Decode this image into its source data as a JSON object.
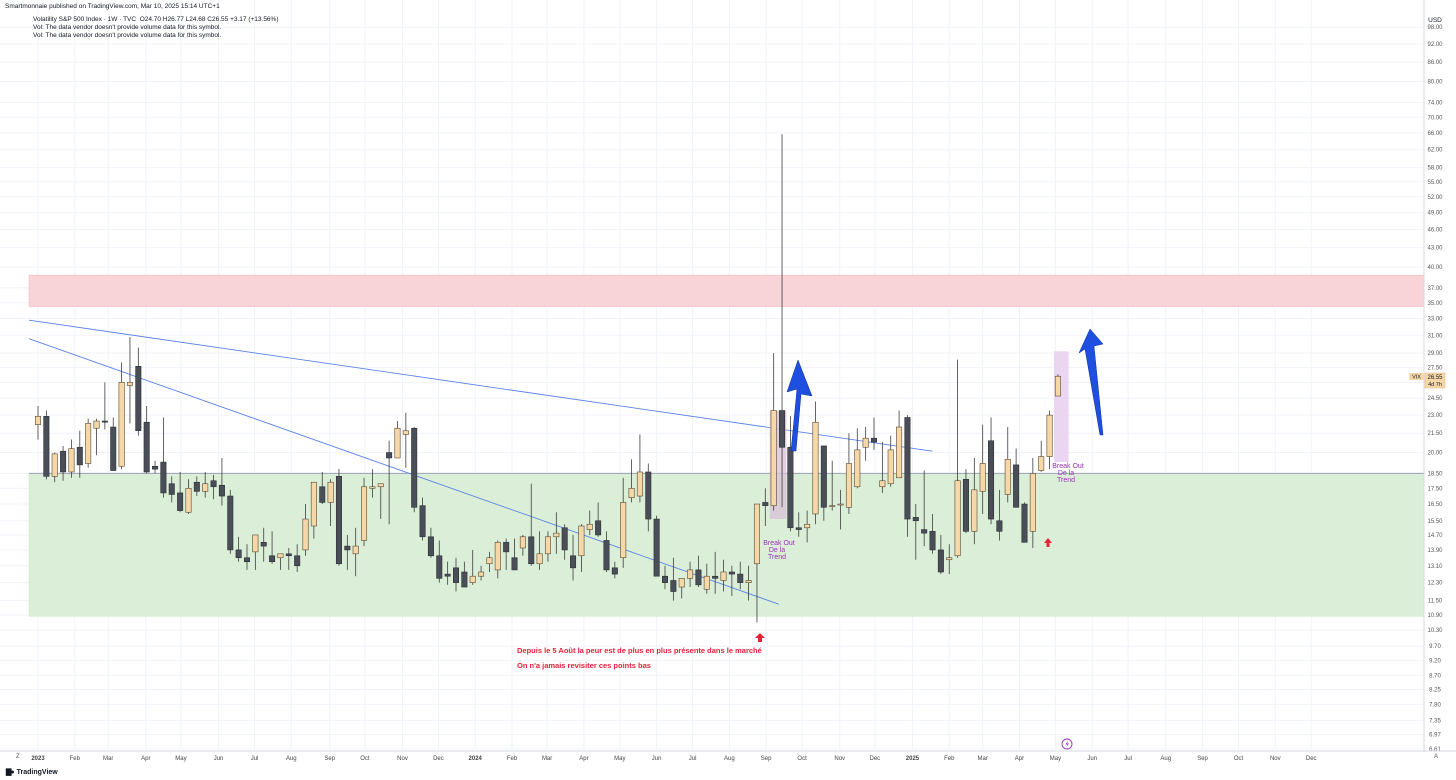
{
  "header": {
    "publisher": "Smartmonnaie published on TradingView.com, Mar 10, 2025 15:14 UTC+1"
  },
  "legend": {
    "title": "Volatility S&P 500 Index · 1W · TVC",
    "ohlc": "O24.70  H26.77  L24.68  C26.55  +3.17 (+13.56%)",
    "vol_notes": [
      "Vol: The data vendor doesn't provide volume data for this symbol.",
      "Vol: The data vendor doesn't provide volume data for this symbol."
    ]
  },
  "currency": "USD",
  "price_tag": {
    "symbol": "VIX",
    "price": "26.55",
    "countdown": "4d 7h"
  },
  "annotations": {
    "note_line1": "Depuis le 5 Août la peur est de plus en plus présente dans le marché",
    "note_line2": "On n'a jamais revisiter ces points bas",
    "breakout_labels": [
      "Break Out",
      "De la",
      "Trend"
    ]
  },
  "footer": {
    "brand": "TradingView",
    "corner_left": "Z",
    "corner_right": "A"
  },
  "colors": {
    "up_body": "#f5d7a8",
    "down_body": "#4a4e57",
    "wick": "#3d3d3d",
    "resistance_zone": "#f8d3d8",
    "support_zone": "#dbefd8",
    "trendline": "#5b83e8",
    "arrow_blue": "#1f4fe0",
    "arrow_red": "#e8213a",
    "breakout_box_1": "#d9c3d6",
    "breakout_box_2": "#e8cfee",
    "label_purple": "#9b30b8"
  },
  "chart_data": {
    "type": "candlestick",
    "title": "Volatility S&P 500 Index",
    "timeframe": "1W",
    "scale": "log",
    "ylim": [
      6.61,
      99.0
    ],
    "y_ticks": [
      "6.61",
      "6.97",
      "7.35",
      "7.80",
      "8.25",
      "8.70",
      "9.20",
      "9.70",
      "10.30",
      "10.90",
      "11.50",
      "12.30",
      "13.10",
      "13.90",
      "14.70",
      "15.50",
      "16.50",
      "17.50",
      "18.50",
      "20.00",
      "21.50",
      "23.00",
      "24.50",
      "26.00",
      "27.50",
      "29.00",
      "31.00",
      "33.00",
      "35.00",
      "37.00",
      "40.00",
      "43.00",
      "46.00",
      "49.00",
      "52.00",
      "55.00",
      "58.00",
      "62.00",
      "66.00",
      "70.00",
      "74.00",
      "80.00",
      "86.00",
      "92.00",
      "98.00"
    ],
    "x_ticks": [
      {
        "label": "2023",
        "t": 0
      },
      {
        "label": "Feb",
        "t": 4.4
      },
      {
        "label": "Mar",
        "t": 8.4
      },
      {
        "label": "Apr",
        "t": 12.9
      },
      {
        "label": "May",
        "t": 17.1
      },
      {
        "label": "Jun",
        "t": 21.6
      },
      {
        "label": "Jul",
        "t": 25.9
      },
      {
        "label": "Aug",
        "t": 30.3
      },
      {
        "label": "Sep",
        "t": 34.9
      },
      {
        "label": "Oct",
        "t": 39.1
      },
      {
        "label": "Nov",
        "t": 43.6
      },
      {
        "label": "Dec",
        "t": 47.9
      },
      {
        "label": "2024",
        "t": 52.3
      },
      {
        "label": "Feb",
        "t": 56.7
      },
      {
        "label": "Mar",
        "t": 60.9
      },
      {
        "label": "Apr",
        "t": 65.3
      },
      {
        "label": "May",
        "t": 69.6
      },
      {
        "label": "Jun",
        "t": 74.0
      },
      {
        "label": "Jul",
        "t": 78.3
      },
      {
        "label": "Aug",
        "t": 82.7
      },
      {
        "label": "Sep",
        "t": 87.1
      },
      {
        "label": "Oct",
        "t": 91.4
      },
      {
        "label": "Nov",
        "t": 95.9
      },
      {
        "label": "Dec",
        "t": 100.1
      },
      {
        "label": "2025",
        "t": 104.6
      },
      {
        "label": "Feb",
        "t": 109.0
      },
      {
        "label": "Mar",
        "t": 113.0
      },
      {
        "label": "Apr",
        "t": 117.4
      },
      {
        "label": "May",
        "t": 121.7
      },
      {
        "label": "Jun",
        "t": 126.1
      },
      {
        "label": "Jul",
        "t": 130.4
      },
      {
        "label": "Aug",
        "t": 134.9
      },
      {
        "label": "Sep",
        "t": 139.3
      },
      {
        "label": "Oct",
        "t": 143.6
      },
      {
        "label": "Nov",
        "t": 148.0
      },
      {
        "label": "Dec",
        "t": 152.3
      }
    ],
    "candles": [
      [
        22.2,
        23.8,
        21.0,
        22.9
      ],
      [
        22.9,
        23.4,
        18.1,
        18.3
      ],
      [
        18.3,
        20.0,
        17.9,
        19.9
      ],
      [
        20.1,
        20.5,
        18.0,
        18.6
      ],
      [
        18.6,
        21.0,
        18.2,
        20.3
      ],
      [
        20.4,
        21.7,
        18.2,
        19.1
      ],
      [
        19.2,
        22.7,
        18.9,
        22.3
      ],
      [
        21.9,
        22.7,
        19.8,
        22.5
      ],
      [
        22.5,
        26.0,
        21.8,
        22.4
      ],
      [
        22.0,
        22.8,
        19.1,
        18.7
      ],
      [
        19.0,
        28.0,
        18.8,
        26.0
      ],
      [
        25.7,
        30.8,
        22.3,
        26.0
      ],
      [
        27.6,
        29.6,
        21.3,
        21.7
      ],
      [
        22.4,
        23.8,
        18.5,
        18.6
      ],
      [
        19.0,
        19.4,
        18.5,
        18.8
      ],
      [
        19.3,
        22.8,
        16.9,
        17.2
      ],
      [
        17.8,
        18.3,
        16.6,
        17.1
      ],
      [
        17.2,
        18.6,
        16.0,
        16.1
      ],
      [
        16.0,
        18.1,
        15.9,
        17.5
      ],
      [
        17.9,
        18.3,
        17.0,
        17.3
      ],
      [
        17.3,
        18.6,
        16.9,
        17.8
      ],
      [
        18.0,
        18.4,
        16.8,
        17.6
      ],
      [
        17.7,
        19.6,
        16.4,
        17.0
      ],
      [
        17.0,
        17.4,
        13.7,
        13.9
      ],
      [
        13.9,
        14.6,
        13.3,
        13.5
      ],
      [
        13.5,
        14.2,
        12.9,
        13.3
      ],
      [
        13.8,
        14.4,
        12.9,
        14.7
      ],
      [
        14.3,
        15.1,
        13.3,
        14.1
      ],
      [
        13.6,
        14.9,
        13.2,
        13.3
      ],
      [
        13.5,
        13.7,
        12.9,
        13.7
      ],
      [
        13.7,
        14.0,
        12.9,
        13.6
      ],
      [
        13.6,
        14.2,
        12.8,
        13.1
      ],
      [
        13.9,
        16.5,
        13.6,
        15.6
      ],
      [
        15.2,
        17.9,
        14.5,
        17.9
      ],
      [
        17.6,
        18.6,
        16.5,
        16.6
      ],
      [
        16.6,
        18.1,
        15.2,
        17.9
      ],
      [
        18.3,
        18.8,
        13.1,
        13.2
      ],
      [
        14.1,
        14.7,
        12.9,
        13.9
      ],
      [
        13.7,
        15.1,
        12.6,
        14.1
      ],
      [
        14.4,
        18.2,
        14.1,
        17.6
      ],
      [
        17.5,
        18.8,
        16.9,
        17.6
      ],
      [
        17.6,
        17.8,
        15.6,
        17.8
      ],
      [
        20.0,
        20.9,
        15.3,
        19.6
      ],
      [
        19.6,
        22.5,
        19.6,
        21.9
      ],
      [
        21.4,
        23.2,
        18.9,
        21.7
      ],
      [
        21.9,
        22.0,
        16.0,
        16.3
      ],
      [
        16.4,
        16.9,
        14.4,
        14.6
      ],
      [
        14.6,
        15.1,
        13.5,
        13.6
      ],
      [
        13.6,
        14.4,
        12.3,
        12.5
      ],
      [
        12.7,
        13.3,
        12.2,
        12.6
      ],
      [
        13.0,
        13.5,
        11.9,
        12.3
      ],
      [
        12.8,
        13.3,
        12.1,
        12.1
      ],
      [
        12.3,
        13.9,
        12.2,
        12.6
      ],
      [
        12.6,
        13.1,
        12.4,
        12.8
      ],
      [
        13.2,
        13.8,
        12.8,
        13.5
      ],
      [
        12.9,
        14.4,
        12.5,
        14.3
      ],
      [
        14.3,
        14.5,
        12.9,
        13.8
      ],
      [
        13.5,
        14.5,
        13.0,
        12.9
      ],
      [
        14.0,
        14.7,
        13.6,
        14.6
      ],
      [
        14.6,
        17.8,
        13.1,
        13.2
      ],
      [
        13.2,
        14.9,
        12.9,
        13.7
      ],
      [
        13.7,
        14.9,
        13.3,
        14.6
      ],
      [
        14.6,
        16.0,
        13.7,
        14.8
      ],
      [
        15.1,
        15.3,
        13.4,
        13.9
      ],
      [
        13.6,
        14.7,
        12.4,
        13.0
      ],
      [
        13.6,
        15.3,
        12.8,
        15.2
      ],
      [
        15.0,
        16.1,
        14.7,
        15.3
      ],
      [
        15.5,
        16.6,
        14.6,
        14.7
      ],
      [
        14.4,
        14.9,
        12.8,
        12.9
      ],
      [
        13.0,
        13.3,
        12.5,
        12.7
      ],
      [
        13.5,
        18.2,
        13.0,
        16.6
      ],
      [
        16.9,
        19.5,
        16.6,
        17.5
      ],
      [
        17.0,
        21.4,
        16.6,
        18.6
      ],
      [
        18.6,
        19.2,
        14.9,
        15.6
      ],
      [
        15.6,
        15.8,
        12.6,
        12.6
      ],
      [
        12.6,
        13.1,
        12.0,
        12.3
      ],
      [
        12.4,
        13.5,
        11.5,
        11.9
      ],
      [
        12.1,
        12.5,
        11.6,
        12.5
      ],
      [
        12.5,
        13.3,
        12.1,
        12.9
      ],
      [
        12.9,
        13.6,
        12.1,
        12.2
      ],
      [
        12.0,
        13.2,
        11.8,
        12.6
      ],
      [
        12.6,
        13.8,
        11.8,
        12.5
      ],
      [
        12.4,
        13.4,
        11.9,
        12.8
      ],
      [
        12.8,
        13.1,
        11.7,
        12.7
      ],
      [
        12.7,
        13.3,
        12.0,
        12.3
      ],
      [
        12.3,
        13.1,
        11.5,
        12.4
      ],
      [
        13.2,
        16.5,
        10.6,
        16.5
      ],
      [
        16.6,
        17.5,
        15.2,
        16.4
      ],
      [
        16.4,
        29.0,
        16.1,
        23.4
      ],
      [
        23.4,
        65.7,
        16.3,
        20.4
      ],
      [
        20.4,
        22.9,
        14.9,
        15.1
      ],
      [
        15.1,
        16.0,
        14.6,
        15.0
      ],
      [
        15.1,
        16.1,
        14.3,
        15.3
      ],
      [
        15.9,
        24.2,
        15.3,
        22.4
      ],
      [
        20.5,
        20.5,
        15.5,
        16.3
      ],
      [
        16.4,
        19.4,
        16.1,
        16.4
      ],
      [
        16.5,
        17.4,
        15.0,
        16.5
      ],
      [
        16.3,
        21.5,
        15.9,
        19.2
      ],
      [
        17.6,
        21.9,
        17.5,
        20.2
      ],
      [
        20.4,
        22.0,
        19.4,
        21.1
      ],
      [
        21.1,
        22.8,
        20.2,
        20.8
      ],
      [
        17.6,
        20.8,
        17.2,
        18.0
      ],
      [
        17.8,
        21.3,
        17.6,
        20.2
      ],
      [
        18.2,
        23.4,
        18.2,
        22.0
      ],
      [
        22.8,
        23.0,
        14.6,
        15.6
      ],
      [
        15.7,
        16.5,
        13.4,
        15.5
      ],
      [
        15.0,
        18.7,
        14.1,
        14.8
      ],
      [
        14.9,
        15.9,
        13.7,
        13.9
      ],
      [
        13.9,
        14.7,
        12.7,
        12.8
      ],
      [
        13.4,
        14.2,
        12.7,
        13.5
      ],
      [
        13.6,
        28.3,
        13.5,
        18.0
      ],
      [
        18.1,
        18.8,
        14.8,
        14.9
      ],
      [
        14.9,
        19.6,
        14.2,
        17.4
      ],
      [
        17.3,
        22.2,
        15.9,
        19.2
      ],
      [
        20.9,
        22.8,
        15.3,
        15.6
      ],
      [
        15.5,
        17.4,
        14.4,
        14.9
      ],
      [
        17.1,
        22.0,
        16.6,
        19.5
      ],
      [
        19.1,
        20.3,
        16.6,
        16.3
      ],
      [
        16.5,
        16.6,
        14.8,
        14.3
      ],
      [
        14.9,
        19.6,
        14.0,
        18.5
      ],
      [
        18.7,
        20.9,
        18.6,
        19.7
      ],
      [
        19.7,
        23.4,
        18.8,
        23.0
      ],
      [
        24.7,
        26.8,
        24.7,
        26.6
      ]
    ],
    "zones": [
      {
        "name": "resistance",
        "from": 34.5,
        "to": 38.8
      },
      {
        "name": "support",
        "from": 10.85,
        "to": 18.5
      }
    ],
    "horizontal_line": 18.5,
    "trendlines": [
      {
        "t1": 0,
        "v1": 32.8,
        "t2": 107,
        "v2": 20.1
      },
      {
        "t1": 0,
        "v1": 30.6,
        "t2": 88.6,
        "v2": 11.35
      }
    ]
  }
}
